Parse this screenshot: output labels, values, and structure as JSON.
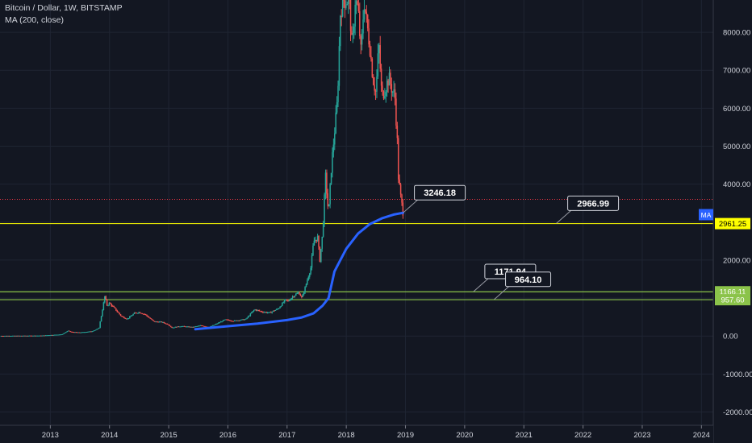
{
  "header": {
    "symbol_title": "Bitcoin / Dollar, 1W, BITSTAMP",
    "indicator_label": "MA (200, close)"
  },
  "chart_data": {
    "type": "candlestick",
    "title": "Bitcoin / Dollar, 1W, BITSTAMP",
    "x_axis": {
      "ticks": [
        "2013",
        "2014",
        "2015",
        "2016",
        "2017",
        "2018",
        "2019",
        "2020",
        "2021",
        "2022",
        "2023",
        "2024"
      ],
      "range": [
        2012.15,
        2024.2
      ]
    },
    "y_axis": {
      "ticks": [
        -2000,
        -1000,
        0,
        1000,
        2000,
        3000,
        4000,
        5000,
        6000,
        7000,
        8000
      ],
      "tick_labels": [
        "-2000.00",
        "-1000.00",
        "0.00",
        "1000.00",
        "2000.00",
        "3000.00",
        "4000.00",
        "5000.00",
        "6000.00",
        "7000.00",
        "8000.00"
      ],
      "range": [
        -2350,
        8850
      ]
    },
    "price_path": [
      [
        2012.15,
        5
      ],
      [
        2012.5,
        8
      ],
      [
        2012.85,
        12
      ],
      [
        2013.2,
        45
      ],
      [
        2013.3,
        140
      ],
      [
        2013.35,
        110
      ],
      [
        2013.5,
        95
      ],
      [
        2013.7,
        125
      ],
      [
        2013.82,
        200
      ],
      [
        2013.87,
        600
      ],
      [
        2013.92,
        1050
      ],
      [
        2013.96,
        800
      ],
      [
        2014.0,
        870
      ],
      [
        2014.1,
        700
      ],
      [
        2014.2,
        520
      ],
      [
        2014.3,
        450
      ],
      [
        2014.42,
        600
      ],
      [
        2014.5,
        630
      ],
      [
        2014.6,
        570
      ],
      [
        2014.75,
        380
      ],
      [
        2014.88,
        370
      ],
      [
        2015.0,
        300
      ],
      [
        2015.05,
        220
      ],
      [
        2015.2,
        260
      ],
      [
        2015.4,
        235
      ],
      [
        2015.55,
        280
      ],
      [
        2015.68,
        230
      ],
      [
        2015.82,
        330
      ],
      [
        2015.95,
        430
      ],
      [
        2016.1,
        400
      ],
      [
        2016.3,
        440
      ],
      [
        2016.45,
        700
      ],
      [
        2016.55,
        650
      ],
      [
        2016.7,
        610
      ],
      [
        2016.85,
        720
      ],
      [
        2016.97,
        950
      ],
      [
        2017.02,
        920
      ],
      [
        2017.1,
        1050
      ],
      [
        2017.2,
        1150
      ],
      [
        2017.25,
        1000
      ],
      [
        2017.3,
        1250
      ],
      [
        2017.4,
        1800
      ],
      [
        2017.45,
        2500
      ],
      [
        2017.52,
        2600
      ],
      [
        2017.55,
        1950
      ],
      [
        2017.6,
        2700
      ],
      [
        2017.65,
        4200
      ],
      [
        2017.7,
        3200
      ],
      [
        2017.75,
        4500
      ],
      [
        2017.85,
        6200
      ],
      [
        2017.9,
        8500
      ],
      [
        2017.94,
        8850
      ],
      [
        2017.98,
        8850
      ],
      [
        2018.05,
        8850
      ],
      [
        2018.1,
        7500
      ],
      [
        2018.15,
        8850
      ],
      [
        2018.2,
        8600
      ],
      [
        2018.25,
        7400
      ],
      [
        2018.3,
        8850
      ],
      [
        2018.35,
        8200
      ],
      [
        2018.4,
        7600
      ],
      [
        2018.45,
        6800
      ],
      [
        2018.5,
        6400
      ],
      [
        2018.55,
        7700
      ],
      [
        2018.6,
        6300
      ],
      [
        2018.65,
        6500
      ],
      [
        2018.72,
        6800
      ],
      [
        2018.78,
        6450
      ],
      [
        2018.82,
        6350
      ],
      [
        2018.86,
        5200
      ],
      [
        2018.88,
        4200
      ],
      [
        2018.92,
        3650
      ],
      [
        2018.96,
        3246
      ]
    ],
    "moving_average": {
      "name": "MA (200, close)",
      "color": "#2962ff",
      "points": [
        [
          2015.45,
          180
        ],
        [
          2016.0,
          260
        ],
        [
          2016.5,
          330
        ],
        [
          2017.0,
          420
        ],
        [
          2017.25,
          490
        ],
        [
          2017.45,
          600
        ],
        [
          2017.6,
          800
        ],
        [
          2017.7,
          1000
        ],
        [
          2017.8,
          1700
        ],
        [
          2017.9,
          2000
        ],
        [
          2018.0,
          2300
        ],
        [
          2018.2,
          2700
        ],
        [
          2018.4,
          2950
        ],
        [
          2018.6,
          3100
        ],
        [
          2018.8,
          3200
        ],
        [
          2018.96,
          3246
        ]
      ]
    },
    "horizontal_lines": [
      {
        "price": 2961.25,
        "label": "2961.25",
        "color": "#ffff00"
      },
      {
        "price": 1166.11,
        "label": "1166.11",
        "color": "#8bc34a"
      },
      {
        "price": 957.6,
        "label": "957.60",
        "color": "#8bc34a"
      }
    ],
    "current_price_line": {
      "price": 3600,
      "color": "#f23645"
    },
    "annotations": [
      {
        "text": "3246.18",
        "x": 2018.96,
        "price": 3246
      },
      {
        "text": "2966.99",
        "x": 2021.55,
        "price": 2966.99
      },
      {
        "text": "1171.94",
        "x": 2020.15,
        "price": 1171.94
      },
      {
        "text": "964.10",
        "x": 2020.5,
        "price": 964.1
      }
    ],
    "ma_tag": {
      "text": "MA",
      "color": "#2962ff"
    },
    "colors": {
      "background": "#131722",
      "up": "#26a69a",
      "down": "#ef5350",
      "grid": "#1f2533",
      "axis_text": "#d1d4dc",
      "crosshair": "#9598a1"
    }
  }
}
